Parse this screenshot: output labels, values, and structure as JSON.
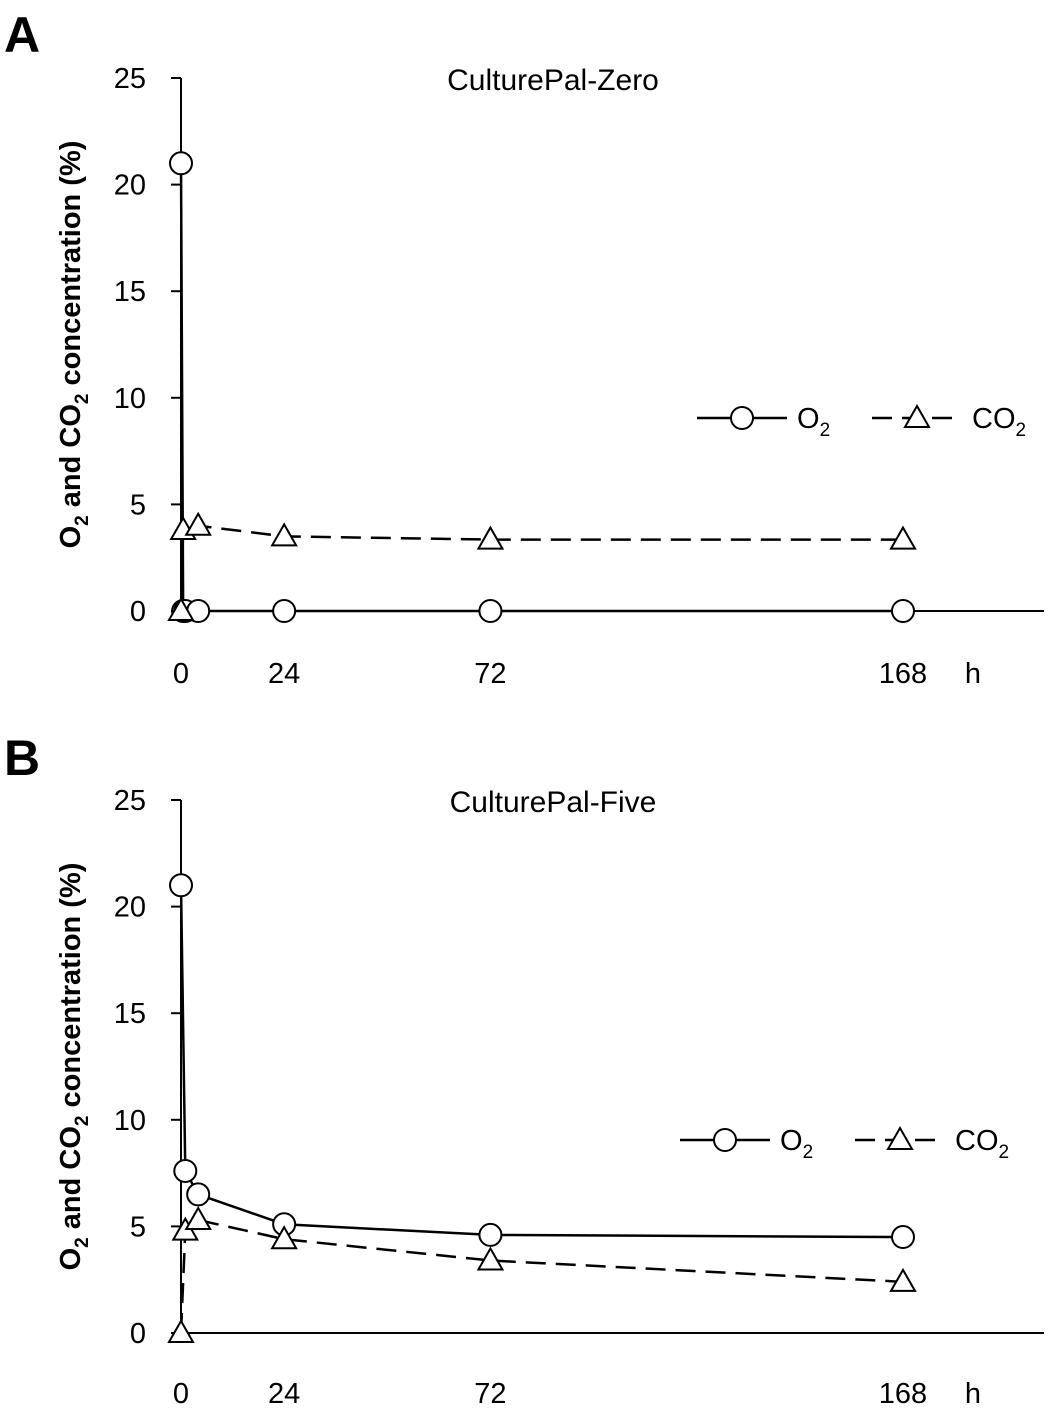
{
  "chart_data": [
    {
      "panel": "A",
      "type": "line",
      "title": "CulturePal-Zero",
      "ylabel_parts": [
        "O",
        "2",
        " and CO",
        "2",
        " concentration (%)"
      ],
      "x_unit": "h",
      "ylim": [
        0,
        25
      ],
      "yticks": [
        0,
        5,
        10,
        15,
        20,
        25
      ],
      "xticks": [
        0,
        24,
        72,
        168
      ],
      "legend_position": "right",
      "series": [
        {
          "name_parts": [
            "O",
            "2"
          ],
          "marker": "circle",
          "dash": "solid",
          "x": [
            0,
            0.5,
            1,
            4,
            24,
            72,
            168
          ],
          "y": [
            21,
            0,
            0,
            0,
            0,
            0,
            0
          ]
        },
        {
          "name_parts": [
            "CO",
            "2"
          ],
          "marker": "triangle",
          "dash": "dashed",
          "x": [
            0,
            0.5,
            4,
            24,
            72,
            168
          ],
          "y": [
            0,
            3.8,
            4.0,
            3.5,
            3.35,
            3.35
          ]
        }
      ]
    },
    {
      "panel": "B",
      "type": "line",
      "title": "CulturePal-Five",
      "ylabel_parts": [
        "O",
        "2",
        " and CO",
        "2",
        " concentration (%)"
      ],
      "x_unit": "h",
      "ylim": [
        0,
        25
      ],
      "yticks": [
        0,
        5,
        10,
        15,
        20,
        25
      ],
      "xticks": [
        0,
        24,
        72,
        168
      ],
      "legend_position": "right",
      "series": [
        {
          "name_parts": [
            "O",
            "2"
          ],
          "marker": "circle",
          "dash": "solid",
          "x": [
            0,
            1,
            4,
            24,
            72,
            168
          ],
          "y": [
            21,
            7.6,
            6.5,
            5.1,
            4.6,
            4.5
          ]
        },
        {
          "name_parts": [
            "CO",
            "2"
          ],
          "marker": "triangle",
          "dash": "dashed",
          "x": [
            0,
            1,
            4,
            24,
            72,
            168
          ],
          "y": [
            0,
            4.8,
            5.3,
            4.4,
            3.4,
            2.4
          ]
        }
      ]
    }
  ]
}
